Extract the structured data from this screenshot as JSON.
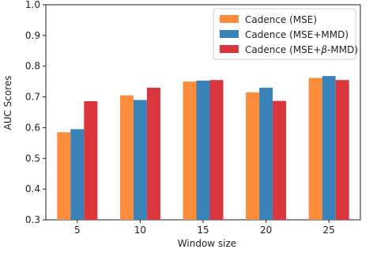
{
  "chart_data": {
    "type": "bar",
    "title": "",
    "xlabel": "Window size",
    "ylabel": "AUC Scores",
    "categories": [
      "5",
      "10",
      "15",
      "20",
      "25"
    ],
    "ylim": [
      0.3,
      1.0
    ],
    "yticks": [
      "0.3",
      "0.4",
      "0.5",
      "0.6",
      "0.7",
      "0.8",
      "0.9",
      "1.0"
    ],
    "grid": false,
    "legend_position": "top-right",
    "series": [
      {
        "name": "Cadence (MSE)",
        "color": "#fb8d3d",
        "values": [
          0.585,
          0.705,
          0.75,
          0.715,
          0.762
        ]
      },
      {
        "name": "Cadence (MSE+MMD)",
        "color": "#3a83b8",
        "values": [
          0.595,
          0.69,
          0.753,
          0.73,
          0.768
        ]
      },
      {
        "name_parts": [
          "Cadence (MSE+",
          "β",
          "-MMD)"
        ],
        "color": "#d9363e",
        "values": [
          0.686,
          0.73,
          0.755,
          0.687,
          0.755
        ]
      }
    ]
  }
}
